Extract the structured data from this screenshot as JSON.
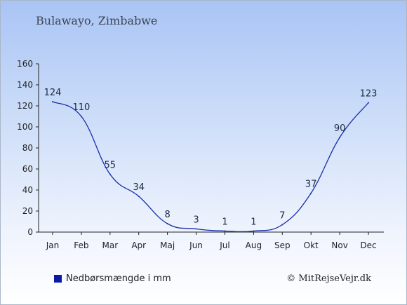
{
  "chart_data": {
    "type": "line",
    "title": "Bulawayo, Zimbabwe",
    "categories": [
      "Jan",
      "Feb",
      "Mar",
      "Apr",
      "Maj",
      "Jun",
      "Jul",
      "Aug",
      "Sep",
      "Okt",
      "Nov",
      "Dec"
    ],
    "values": [
      124,
      110,
      55,
      34,
      8,
      3,
      1,
      1,
      7,
      37,
      90,
      123
    ],
    "ylim": [
      0,
      160
    ],
    "yticks": [
      0,
      20,
      40,
      60,
      80,
      100,
      120,
      140,
      160
    ],
    "grid": false,
    "series_color": "#1a2ea8",
    "legend": {
      "label": "Nedbørsmængde i mm",
      "color": "#0a1aa6",
      "placement": "bottom-left"
    }
  },
  "credit": "© MitRejseVejr.dk"
}
